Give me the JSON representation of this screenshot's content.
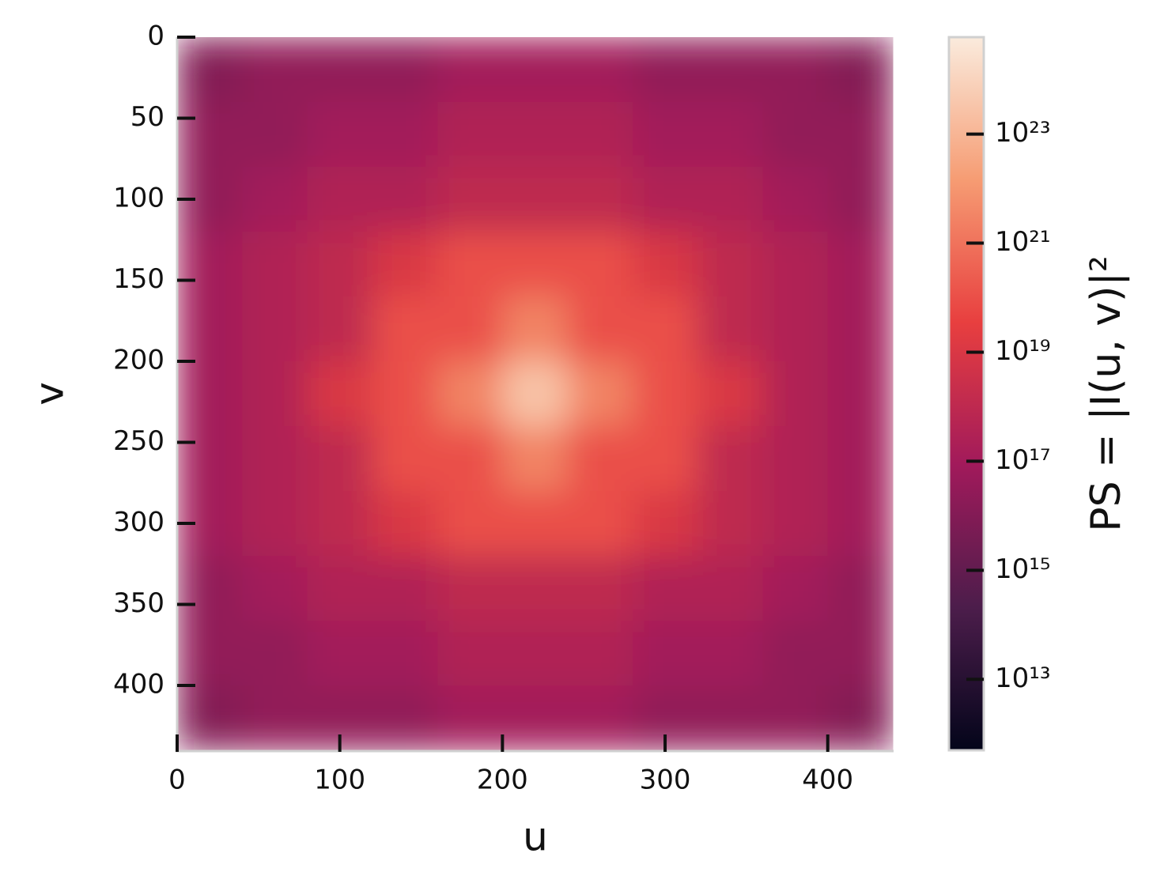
{
  "chart_data": {
    "type": "heatmap",
    "x_label": "u",
    "y_label": "v",
    "xlim": [
      0,
      440
    ],
    "ylim": [
      440,
      0
    ],
    "xticks": [
      0,
      100,
      200,
      300,
      400
    ],
    "yticks": [
      0,
      50,
      100,
      150,
      200,
      250,
      300,
      350,
      400
    ],
    "z": [
      [
        1e+16,
        3e+16,
        3e+16,
        3e+16,
        1e+17,
        1e+17,
        1e+17,
        3e+16,
        3e+16,
        3e+16,
        1e+16
      ],
      [
        3e+16,
        3e+16,
        1e+17,
        1e+17,
        3e+17,
        3e+17,
        3e+17,
        1e+17,
        1e+17,
        3e+16,
        3e+16
      ],
      [
        3e+16,
        1e+17,
        3e+17,
        3e+17,
        1e+18,
        1e+18,
        1e+18,
        3e+17,
        3e+17,
        1e+17,
        3e+16
      ],
      [
        1e+17,
        3e+17,
        1e+18,
        1e+19,
        1e+20,
        1e+20,
        1e+20,
        1e+19,
        1e+18,
        3e+17,
        1e+17
      ],
      [
        1e+17,
        3e+17,
        1e+18,
        1e+20,
        1e+20,
        3e+21,
        1e+20,
        1e+20,
        1e+18,
        3e+17,
        1e+17
      ],
      [
        1e+17,
        3e+17,
        1e+19,
        1e+20,
        3e+21,
        3e+23,
        3e+21,
        1e+20,
        1e+19,
        3e+17,
        1e+17
      ],
      [
        1e+17,
        3e+17,
        1e+18,
        1e+20,
        1e+20,
        3e+21,
        1e+20,
        1e+20,
        1e+18,
        3e+17,
        1e+17
      ],
      [
        1e+17,
        3e+17,
        1e+18,
        1e+19,
        1e+20,
        1e+20,
        1e+20,
        1e+19,
        1e+18,
        3e+17,
        1e+17
      ],
      [
        3e+16,
        1e+17,
        3e+17,
        3e+17,
        1e+18,
        1e+18,
        1e+18,
        3e+17,
        3e+17,
        1e+17,
        3e+16
      ],
      [
        3e+16,
        3e+16,
        1e+17,
        1e+17,
        3e+17,
        3e+17,
        3e+17,
        1e+17,
        1e+17,
        3e+16,
        3e+16
      ],
      [
        1e+16,
        3e+16,
        3e+16,
        3e+16,
        1e+17,
        1e+17,
        1e+17,
        3e+16,
        3e+16,
        3e+16,
        1e+16
      ]
    ],
    "colorbar": {
      "label": "PS = |I(u, v)|²",
      "log": true,
      "lim": [
        500000000000.0,
        6e+24
      ],
      "ticks": [
        {
          "value": 10000000000000.0,
          "label": "10¹³"
        },
        {
          "value": 1000000000000000.0,
          "label": "10¹⁵"
        },
        {
          "value": 1e+17,
          "label": "10¹⁷"
        },
        {
          "value": 1e+19,
          "label": "10¹⁹"
        },
        {
          "value": 1e+21,
          "label": "10²¹"
        },
        {
          "value": 1e+23,
          "label": "10²³"
        }
      ],
      "colors": [
        "#03051a",
        "#4c1d4b",
        "#a11a5b",
        "#e83f3f",
        "#f69c73",
        "#faebdd"
      ]
    }
  }
}
